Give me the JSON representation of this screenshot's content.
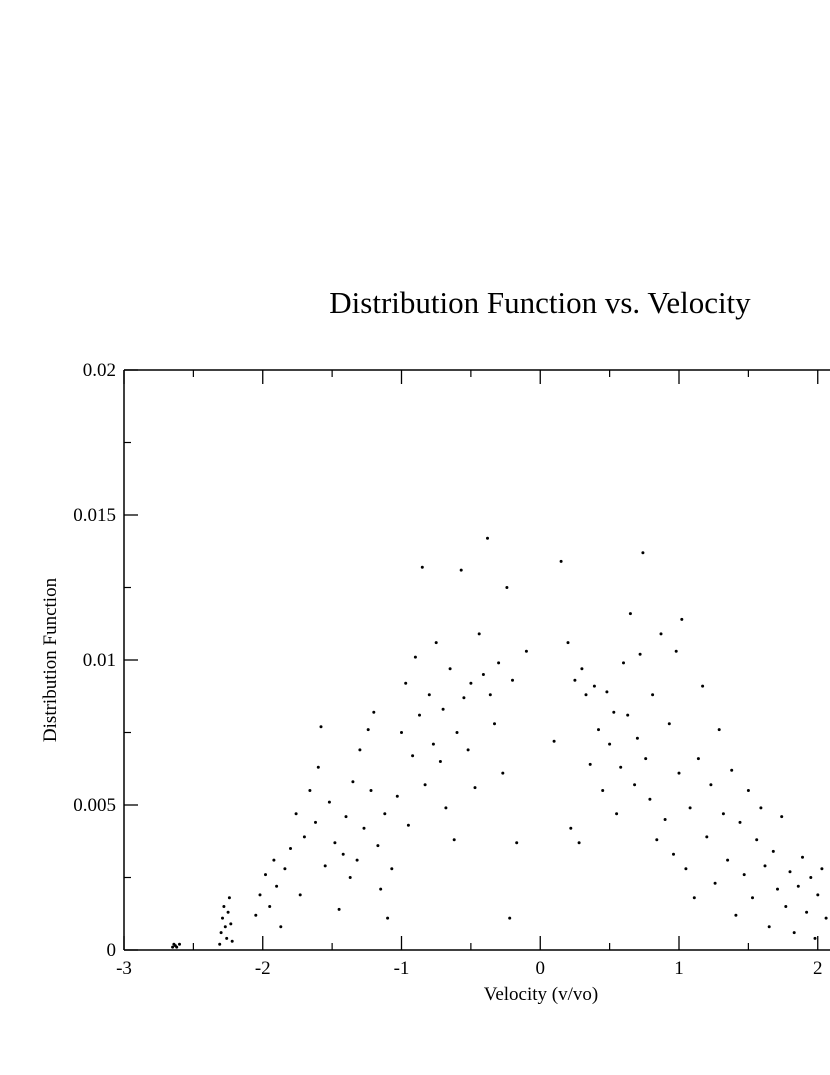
{
  "chart_data": {
    "type": "scatter",
    "title": "Distribution Function vs. Velocity",
    "xlabel": "Velocity (v/vo)",
    "ylabel": "Distribution Function",
    "xlim": [
      -3,
      2
    ],
    "ylim": [
      0,
      0.02
    ],
    "xticks": [
      "-3",
      "-2",
      "-1",
      "0",
      "1",
      "2"
    ],
    "yticks": [
      "0",
      "0.005",
      "0.01",
      "0.015",
      "0.02"
    ],
    "marker_color": "#000000",
    "grid": false,
    "series": [
      {
        "points": [
          [
            -2.65,
            0.0001
          ],
          [
            -2.64,
            0.0002
          ],
          [
            -2.63,
            0.00015
          ],
          [
            -2.62,
            0.0001
          ],
          [
            -2.6,
            0.0002
          ],
          [
            -2.31,
            0.0002
          ],
          [
            -2.3,
            0.0006
          ],
          [
            -2.29,
            0.0011
          ],
          [
            -2.28,
            0.0015
          ],
          [
            -2.27,
            0.0008
          ],
          [
            -2.26,
            0.0004
          ],
          [
            -2.25,
            0.0013
          ],
          [
            -2.24,
            0.0018
          ],
          [
            -2.23,
            0.0009
          ],
          [
            -2.22,
            0.0003
          ],
          [
            -2.05,
            0.0012
          ],
          [
            -2.02,
            0.0019
          ],
          [
            -1.98,
            0.0026
          ],
          [
            -1.95,
            0.0015
          ],
          [
            -1.92,
            0.0031
          ],
          [
            -1.9,
            0.0022
          ],
          [
            -1.87,
            0.0008
          ],
          [
            -1.84,
            0.0028
          ],
          [
            -1.8,
            0.0035
          ],
          [
            -1.76,
            0.0047
          ],
          [
            -1.73,
            0.0019
          ],
          [
            -1.7,
            0.0039
          ],
          [
            -1.66,
            0.0055
          ],
          [
            -1.62,
            0.0044
          ],
          [
            -1.6,
            0.0063
          ],
          [
            -1.58,
            0.0077
          ],
          [
            -1.55,
            0.0029
          ],
          [
            -1.52,
            0.0051
          ],
          [
            -1.48,
            0.0037
          ],
          [
            -1.45,
            0.0014
          ],
          [
            -1.42,
            0.0033
          ],
          [
            -1.4,
            0.0046
          ],
          [
            -1.37,
            0.0025
          ],
          [
            -1.35,
            0.0058
          ],
          [
            -1.32,
            0.0031
          ],
          [
            -1.3,
            0.0069
          ],
          [
            -1.27,
            0.0042
          ],
          [
            -1.24,
            0.0076
          ],
          [
            -1.22,
            0.0055
          ],
          [
            -1.2,
            0.0082
          ],
          [
            -1.17,
            0.0036
          ],
          [
            -1.15,
            0.0021
          ],
          [
            -1.12,
            0.0047
          ],
          [
            -1.1,
            0.0011
          ],
          [
            -1.07,
            0.0028
          ],
          [
            -1.03,
            0.0053
          ],
          [
            -1.0,
            0.0075
          ],
          [
            -0.97,
            0.0092
          ],
          [
            -0.95,
            0.0043
          ],
          [
            -0.92,
            0.0067
          ],
          [
            -0.9,
            0.0101
          ],
          [
            -0.87,
            0.0081
          ],
          [
            -0.85,
            0.0132
          ],
          [
            -0.83,
            0.0057
          ],
          [
            -0.8,
            0.0088
          ],
          [
            -0.77,
            0.0071
          ],
          [
            -0.75,
            0.0106
          ],
          [
            -0.72,
            0.0065
          ],
          [
            -0.7,
            0.0083
          ],
          [
            -0.68,
            0.0049
          ],
          [
            -0.65,
            0.0097
          ],
          [
            -0.62,
            0.0038
          ],
          [
            -0.6,
            0.0075
          ],
          [
            -0.57,
            0.0131
          ],
          [
            -0.55,
            0.0087
          ],
          [
            -0.52,
            0.0069
          ],
          [
            -0.5,
            0.0092
          ],
          [
            -0.47,
            0.0056
          ],
          [
            -0.44,
            0.0109
          ],
          [
            -0.41,
            0.0095
          ],
          [
            -0.38,
            0.0142
          ],
          [
            -0.36,
            0.0088
          ],
          [
            -0.33,
            0.0078
          ],
          [
            -0.3,
            0.0099
          ],
          [
            -0.27,
            0.0061
          ],
          [
            -0.24,
            0.0125
          ],
          [
            -0.22,
            0.0011
          ],
          [
            -0.2,
            0.0093
          ],
          [
            -0.17,
            0.0037
          ],
          [
            -0.1,
            0.0103
          ],
          [
            0.1,
            0.0072
          ],
          [
            0.15,
            0.0134
          ],
          [
            0.2,
            0.0106
          ],
          [
            0.22,
            0.0042
          ],
          [
            0.25,
            0.0093
          ],
          [
            0.28,
            0.0037
          ],
          [
            0.3,
            0.0097
          ],
          [
            0.33,
            0.0088
          ],
          [
            0.36,
            0.0064
          ],
          [
            0.39,
            0.0091
          ],
          [
            0.42,
            0.0076
          ],
          [
            0.45,
            0.0055
          ],
          [
            0.48,
            0.0089
          ],
          [
            0.5,
            0.0071
          ],
          [
            0.53,
            0.0082
          ],
          [
            0.55,
            0.0047
          ],
          [
            0.58,
            0.0063
          ],
          [
            0.6,
            0.0099
          ],
          [
            0.63,
            0.0081
          ],
          [
            0.65,
            0.0116
          ],
          [
            0.68,
            0.0057
          ],
          [
            0.7,
            0.0073
          ],
          [
            0.72,
            0.0102
          ],
          [
            0.74,
            0.0137
          ],
          [
            0.76,
            0.0066
          ],
          [
            0.79,
            0.0052
          ],
          [
            0.81,
            0.0088
          ],
          [
            0.84,
            0.0038
          ],
          [
            0.87,
            0.0109
          ],
          [
            0.9,
            0.0045
          ],
          [
            0.93,
            0.0078
          ],
          [
            0.96,
            0.0033
          ],
          [
            0.98,
            0.0103
          ],
          [
            1.0,
            0.0061
          ],
          [
            1.02,
            0.0114
          ],
          [
            1.05,
            0.0028
          ],
          [
            1.08,
            0.0049
          ],
          [
            1.11,
            0.0018
          ],
          [
            1.14,
            0.0066
          ],
          [
            1.17,
            0.0091
          ],
          [
            1.2,
            0.0039
          ],
          [
            1.23,
            0.0057
          ],
          [
            1.26,
            0.0023
          ],
          [
            1.29,
            0.0076
          ],
          [
            1.32,
            0.0047
          ],
          [
            1.35,
            0.0031
          ],
          [
            1.38,
            0.0062
          ],
          [
            1.41,
            0.0012
          ],
          [
            1.44,
            0.0044
          ],
          [
            1.47,
            0.0026
          ],
          [
            1.5,
            0.0055
          ],
          [
            1.53,
            0.0018
          ],
          [
            1.56,
            0.0038
          ],
          [
            1.59,
            0.0049
          ],
          [
            1.62,
            0.0029
          ],
          [
            1.65,
            0.0008
          ],
          [
            1.68,
            0.0034
          ],
          [
            1.71,
            0.0021
          ],
          [
            1.74,
            0.0046
          ],
          [
            1.77,
            0.0015
          ],
          [
            1.8,
            0.0027
          ],
          [
            1.83,
            0.0006
          ],
          [
            1.86,
            0.0022
          ],
          [
            1.89,
            0.0032
          ],
          [
            1.92,
            0.0013
          ],
          [
            1.95,
            0.0025
          ],
          [
            1.98,
            0.0004
          ],
          [
            2.0,
            0.0019
          ],
          [
            2.03,
            0.0028
          ],
          [
            2.06,
            0.0011
          ]
        ]
      }
    ]
  }
}
